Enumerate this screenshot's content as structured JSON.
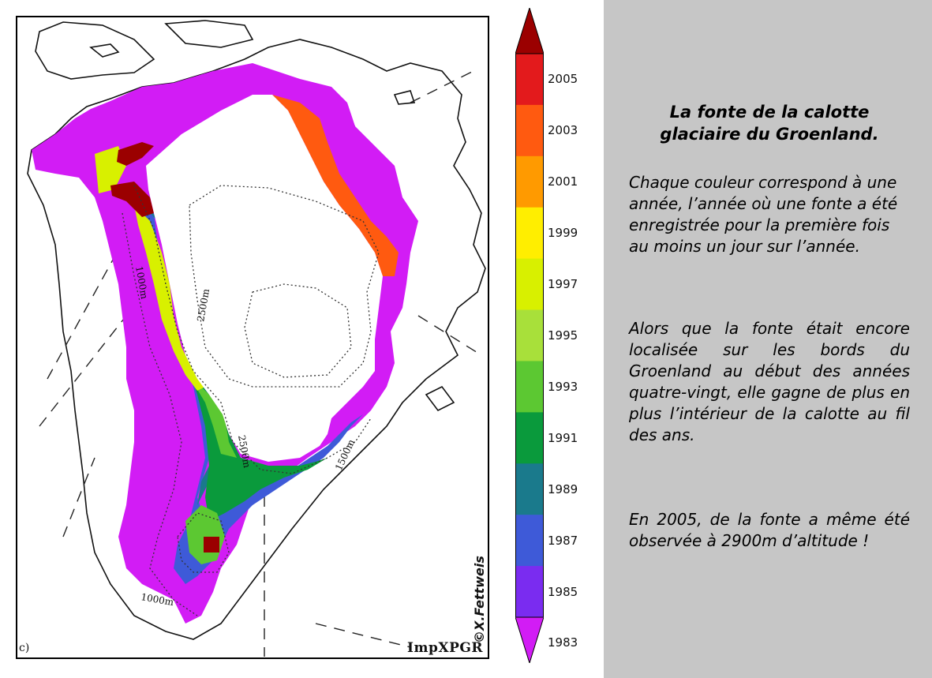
{
  "map": {
    "panel_label": "c)",
    "credit": "©X.Fettweis",
    "software_label": "ImpXPGR",
    "contour_labels": [
      "1000m",
      "2500m",
      "2500m",
      "1500m",
      "1000m"
    ]
  },
  "colorbar": {
    "ticks": [
      "2005",
      "2003",
      "2001",
      "1999",
      "1997",
      "1995",
      "1993",
      "1991",
      "1989",
      "1987",
      "1985",
      "1983"
    ],
    "colors": [
      "#9b0000",
      "#e31a1c",
      "#ff5a10",
      "#ff9a00",
      "#ffee00",
      "#d8f000",
      "#a8e03a",
      "#5cc832",
      "#0a9a3c",
      "#1a7a8c",
      "#3e5ad8",
      "#7a2cf0",
      "#d21cf5"
    ]
  },
  "caption": {
    "title": "La fonte de la calotte glaciaire du Groenland.",
    "paragraph1": "Chaque couleur correspond à une année, l’année où une fonte a été enregistrée pour la première fois au moins un jour sur l’année.",
    "paragraph2": "Alors que la fonte était encore localisée sur les bords du Groenland au début des années quatre-vingt, elle gagne de plus en plus l’intérieur de la calotte au fil des ans.",
    "paragraph3": "En 2005, de la fonte a même été observée à 2900m d’altitude !"
  }
}
